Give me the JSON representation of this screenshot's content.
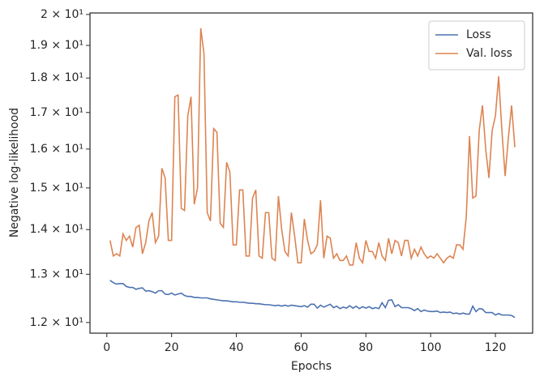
{
  "chart_data": {
    "type": "line",
    "xlabel": "Epochs",
    "ylabel": "Negative log-likelihood",
    "log_y": true,
    "legend": "upper right",
    "x": [
      1,
      2,
      3,
      4,
      5,
      6,
      7,
      8,
      9,
      10,
      11,
      12,
      13,
      14,
      15,
      16,
      17,
      18,
      19,
      20,
      21,
      22,
      23,
      24,
      25,
      26,
      27,
      28,
      29,
      30,
      31,
      32,
      33,
      34,
      35,
      36,
      37,
      38,
      39,
      40,
      41,
      42,
      43,
      44,
      45,
      46,
      47,
      48,
      49,
      50,
      51,
      52,
      53,
      54,
      55,
      56,
      57,
      58,
      59,
      60,
      61,
      62,
      63,
      64,
      65,
      66,
      67,
      68,
      69,
      70,
      71,
      72,
      73,
      74,
      75,
      76,
      77,
      78,
      79,
      80,
      81,
      82,
      83,
      84,
      85,
      86,
      87,
      88,
      89,
      90,
      91,
      92,
      93,
      94,
      95,
      96,
      97,
      98,
      99,
      100,
      101,
      102,
      103,
      104,
      105,
      106,
      107,
      108,
      109,
      110,
      111,
      112,
      113,
      114,
      115,
      116,
      117,
      118,
      119,
      120,
      121,
      122,
      123,
      124,
      125,
      126
    ],
    "series": [
      {
        "name": "Loss",
        "color": "#4c72b0",
        "values": [
          12.87,
          12.82,
          12.79,
          12.8,
          12.8,
          12.74,
          12.72,
          12.72,
          12.68,
          12.7,
          12.71,
          12.64,
          12.65,
          12.63,
          12.6,
          12.65,
          12.65,
          12.58,
          12.57,
          12.6,
          12.56,
          12.58,
          12.6,
          12.55,
          12.53,
          12.53,
          12.51,
          12.51,
          12.5,
          12.5,
          12.5,
          12.48,
          12.47,
          12.46,
          12.45,
          12.44,
          12.44,
          12.43,
          12.42,
          12.42,
          12.41,
          12.41,
          12.4,
          12.39,
          12.39,
          12.38,
          12.38,
          12.37,
          12.36,
          12.36,
          12.35,
          12.34,
          12.35,
          12.33,
          12.35,
          12.33,
          12.35,
          12.34,
          12.33,
          12.32,
          12.34,
          12.31,
          12.37,
          12.37,
          12.29,
          12.35,
          12.31,
          12.34,
          12.37,
          12.3,
          12.33,
          12.28,
          12.31,
          12.29,
          12.34,
          12.29,
          12.33,
          12.28,
          12.32,
          12.29,
          12.32,
          12.28,
          12.3,
          12.28,
          12.4,
          12.3,
          12.45,
          12.46,
          12.32,
          12.36,
          12.3,
          12.3,
          12.3,
          12.28,
          12.24,
          12.28,
          12.22,
          12.25,
          12.23,
          12.22,
          12.22,
          12.23,
          12.2,
          12.21,
          12.2,
          12.21,
          12.18,
          12.19,
          12.17,
          12.19,
          12.17,
          12.17,
          12.33,
          12.22,
          12.28,
          12.27,
          12.2,
          12.2,
          12.2,
          12.15,
          12.18,
          12.15,
          12.15,
          12.15,
          12.14,
          12.1
        ]
      },
      {
        "name": "Val. loss",
        "color": "#dd8452",
        "values": [
          13.75,
          13.4,
          13.45,
          13.4,
          13.9,
          13.75,
          13.85,
          13.6,
          14.05,
          14.1,
          13.45,
          13.7,
          14.2,
          14.4,
          13.7,
          13.85,
          15.5,
          15.25,
          13.75,
          13.75,
          17.45,
          17.5,
          14.5,
          14.45,
          16.9,
          17.45,
          14.6,
          15.0,
          19.55,
          18.75,
          14.4,
          14.2,
          16.55,
          16.45,
          14.15,
          14.05,
          15.65,
          15.4,
          13.65,
          13.65,
          14.95,
          14.95,
          13.4,
          13.4,
          14.75,
          14.95,
          13.4,
          13.35,
          14.4,
          14.4,
          13.35,
          13.3,
          14.8,
          14.0,
          13.5,
          13.4,
          14.4,
          13.85,
          13.25,
          13.25,
          14.25,
          13.75,
          13.45,
          13.5,
          13.65,
          14.7,
          13.35,
          13.85,
          13.8,
          13.35,
          13.45,
          13.3,
          13.3,
          13.4,
          13.2,
          13.2,
          13.7,
          13.35,
          13.25,
          13.75,
          13.5,
          13.5,
          13.35,
          13.7,
          13.4,
          13.3,
          13.8,
          13.45,
          13.75,
          13.7,
          13.4,
          13.75,
          13.75,
          13.35,
          13.55,
          13.4,
          13.6,
          13.45,
          13.35,
          13.4,
          13.35,
          13.45,
          13.35,
          13.25,
          13.35,
          13.4,
          13.35,
          13.65,
          13.65,
          13.55,
          14.3,
          16.35,
          14.75,
          14.8,
          16.5,
          17.2,
          16.0,
          15.25,
          16.5,
          16.9,
          18.05,
          16.5,
          15.3,
          16.3,
          17.2,
          16.05
        ]
      }
    ],
    "xlim": [
      -5.2,
      131.5
    ],
    "xticks": [
      0,
      20,
      40,
      60,
      80,
      100,
      120
    ],
    "ylim": [
      11.79,
      20.05
    ],
    "yticks": [
      {
        "value": 12,
        "label": "1.2 × 10¹"
      },
      {
        "value": 13,
        "label": "1.3 × 10¹"
      },
      {
        "value": 14,
        "label": "1.4 × 10¹"
      },
      {
        "value": 15,
        "label": "1.5 × 10¹"
      },
      {
        "value": 16,
        "label": "1.6 × 10¹"
      },
      {
        "value": 17,
        "label": "1.7 × 10¹"
      },
      {
        "value": 18,
        "label": "1.8 × 10¹"
      },
      {
        "value": 19,
        "label": "1.9 × 10¹"
      },
      {
        "value": 20,
        "label": "2 × 10¹"
      }
    ]
  }
}
